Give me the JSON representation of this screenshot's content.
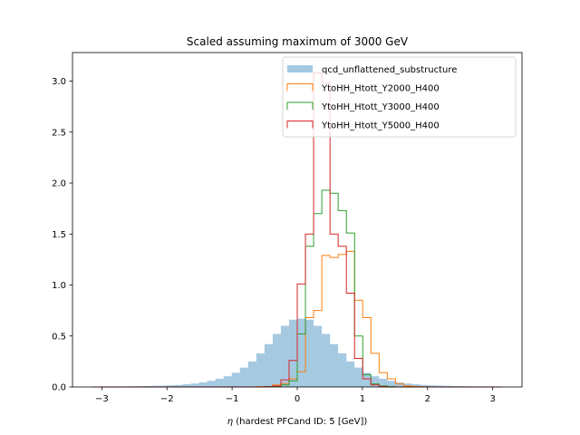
{
  "chart_data": {
    "type": "histogram",
    "title": "Scaled assuming maximum of 3000 GeV",
    "xlabel_symbol": "η",
    "xlabel_text": " (hardest PFCand ID: 5 [GeV])",
    "xlim": [
      -3.45,
      3.45
    ],
    "ylim": [
      0,
      3.28
    ],
    "xticks": [
      -3,
      -2,
      -1,
      0,
      1,
      2,
      3
    ],
    "yticks": [
      0.0,
      0.5,
      1.0,
      1.5,
      2.0,
      2.5,
      3.0
    ],
    "xtick_labels": [
      "−3",
      "−2",
      "−1",
      "0",
      "1",
      "2",
      "3"
    ],
    "ytick_labels": [
      "0.0",
      "0.5",
      "1.0",
      "1.5",
      "2.0",
      "2.5",
      "3.0"
    ],
    "bin_edges": [
      -3.142,
      -3.016,
      -2.89,
      -2.765,
      -2.639,
      -2.513,
      -2.388,
      -2.262,
      -2.136,
      -2.011,
      -1.885,
      -1.759,
      -1.634,
      -1.508,
      -1.382,
      -1.257,
      -1.131,
      -1.005,
      -0.88,
      -0.754,
      -0.628,
      -0.503,
      -0.377,
      -0.251,
      -0.126,
      0.0,
      0.126,
      0.251,
      0.377,
      0.503,
      0.628,
      0.754,
      0.88,
      1.005,
      1.131,
      1.257,
      1.382,
      1.508,
      1.634,
      1.759,
      1.885,
      2.011,
      2.136,
      2.262,
      2.388,
      2.513,
      2.639,
      2.765,
      2.89,
      3.016,
      3.142
    ],
    "legend_location": "upper right",
    "series": [
      {
        "name": "qcd_unflattened_substructure",
        "style": "filled",
        "color": "#1f77b4",
        "alpha": 0.4,
        "values": [
          0.002,
          0.003,
          0.004,
          0.005,
          0.006,
          0.007,
          0.009,
          0.011,
          0.013,
          0.016,
          0.02,
          0.026,
          0.034,
          0.045,
          0.06,
          0.08,
          0.105,
          0.14,
          0.19,
          0.25,
          0.33,
          0.42,
          0.52,
          0.6,
          0.66,
          0.67,
          0.66,
          0.6,
          0.52,
          0.42,
          0.33,
          0.25,
          0.19,
          0.14,
          0.105,
          0.08,
          0.06,
          0.045,
          0.034,
          0.026,
          0.02,
          0.016,
          0.013,
          0.011,
          0.009,
          0.007,
          0.006,
          0.005,
          0.004,
          0.003
        ]
      },
      {
        "name": "YtoHH_Htott_Y2000_H400",
        "style": "step",
        "color": "#ff7f0e",
        "values": [
          0,
          0,
          0,
          0,
          0,
          0,
          0,
          0,
          0,
          0,
          0,
          0,
          0,
          0,
          0,
          0,
          0,
          0,
          0,
          0,
          0.003,
          0.005,
          0.02,
          0.035,
          0.08,
          0.15,
          0.68,
          0.75,
          1.29,
          1.27,
          1.3,
          1.33,
          0.85,
          0.68,
          0.33,
          0.14,
          0.08,
          0.03,
          0.01,
          0.005,
          0.002,
          0,
          0,
          0,
          0,
          0,
          0,
          0,
          0,
          0
        ]
      },
      {
        "name": "YtoHH_Htott_Y3000_H400",
        "style": "step",
        "color": "#2ca02c",
        "values": [
          0,
          0,
          0,
          0,
          0,
          0,
          0,
          0,
          0,
          0,
          0,
          0,
          0,
          0,
          0,
          0,
          0,
          0,
          0,
          0,
          0,
          0.002,
          0.005,
          0.02,
          0.06,
          0.52,
          1.38,
          1.7,
          1.93,
          1.9,
          1.73,
          1.51,
          0.5,
          0.12,
          0.03,
          0.01,
          0.003,
          0,
          0,
          0,
          0,
          0,
          0,
          0,
          0,
          0,
          0,
          0,
          0,
          0
        ]
      },
      {
        "name": "YtoHH_Htott_Y5000_H400",
        "style": "step",
        "color": "#d62728",
        "values": [
          0,
          0,
          0,
          0,
          0,
          0,
          0,
          0,
          0,
          0,
          0,
          0,
          0,
          0,
          0,
          0,
          0,
          0,
          0,
          0,
          0,
          0.002,
          0.01,
          0.07,
          0.26,
          1.01,
          1.5,
          3.08,
          2.98,
          1.5,
          1.38,
          0.92,
          0.28,
          0.08,
          0.02,
          0.005,
          0,
          0,
          0,
          0,
          0,
          0,
          0,
          0,
          0,
          0,
          0,
          0,
          0,
          0
        ]
      }
    ]
  }
}
